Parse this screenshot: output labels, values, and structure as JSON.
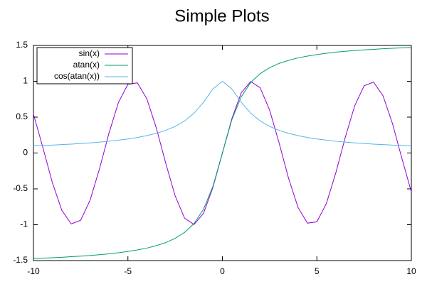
{
  "chart_data": {
    "type": "line",
    "title": "Simple Plots",
    "x": [
      -10,
      -9.5,
      -9,
      -8.5,
      -8,
      -7.5,
      -7,
      -6.5,
      -6,
      -5.5,
      -5,
      -4.5,
      -4,
      -3.5,
      -3,
      -2.5,
      -2,
      -1.5,
      -1,
      -0.5,
      0,
      0.5,
      1,
      1.5,
      2,
      2.5,
      3,
      3.5,
      4,
      4.5,
      5,
      5.5,
      6,
      6.5,
      7,
      7.5,
      8,
      8.5,
      9,
      9.5,
      10
    ],
    "series": [
      {
        "name": "sin(x)",
        "color": "#9400d3",
        "values": [
          0.544,
          0.075,
          -0.412,
          -0.798,
          -0.989,
          -0.938,
          -0.657,
          -0.215,
          0.279,
          0.706,
          0.959,
          0.978,
          0.757,
          0.351,
          -0.141,
          -0.598,
          -0.909,
          -0.997,
          -0.841,
          -0.479,
          0,
          0.479,
          0.841,
          0.997,
          0.909,
          0.598,
          0.141,
          -0.351,
          -0.757,
          -0.978,
          -0.959,
          -0.706,
          -0.279,
          0.215,
          0.657,
          0.938,
          0.989,
          0.798,
          0.412,
          -0.075,
          -0.544
        ]
      },
      {
        "name": "atan(x)",
        "color": "#009e73",
        "values": [
          -1.471,
          -1.466,
          -1.46,
          -1.454,
          -1.446,
          -1.438,
          -1.429,
          -1.418,
          -1.406,
          -1.391,
          -1.373,
          -1.352,
          -1.326,
          -1.292,
          -1.249,
          -1.19,
          -1.107,
          -0.983,
          -0.785,
          -0.464,
          0,
          0.464,
          0.785,
          0.983,
          1.107,
          1.19,
          1.249,
          1.292,
          1.326,
          1.352,
          1.373,
          1.391,
          1.406,
          1.418,
          1.429,
          1.438,
          1.446,
          1.454,
          1.46,
          1.466,
          1.471
        ]
      },
      {
        "name": "cos(atan(x))",
        "color": "#56b4e9",
        "values": [
          0.1,
          0.105,
          0.11,
          0.117,
          0.124,
          0.132,
          0.141,
          0.152,
          0.164,
          0.179,
          0.196,
          0.217,
          0.243,
          0.275,
          0.316,
          0.371,
          0.447,
          0.555,
          0.707,
          0.894,
          1,
          0.894,
          0.707,
          0.555,
          0.447,
          0.371,
          0.316,
          0.275,
          0.243,
          0.217,
          0.196,
          0.179,
          0.164,
          0.152,
          0.141,
          0.132,
          0.124,
          0.117,
          0.11,
          0.105,
          0.1
        ]
      }
    ],
    "xlim": [
      -10,
      10
    ],
    "xticks": [
      -10,
      -5,
      0,
      5,
      10
    ],
    "ylim": [
      -1.5,
      1.5
    ],
    "yticks": [
      -1.5,
      -1,
      -0.5,
      0,
      0.5,
      1,
      1.5
    ],
    "legend": "top left"
  }
}
